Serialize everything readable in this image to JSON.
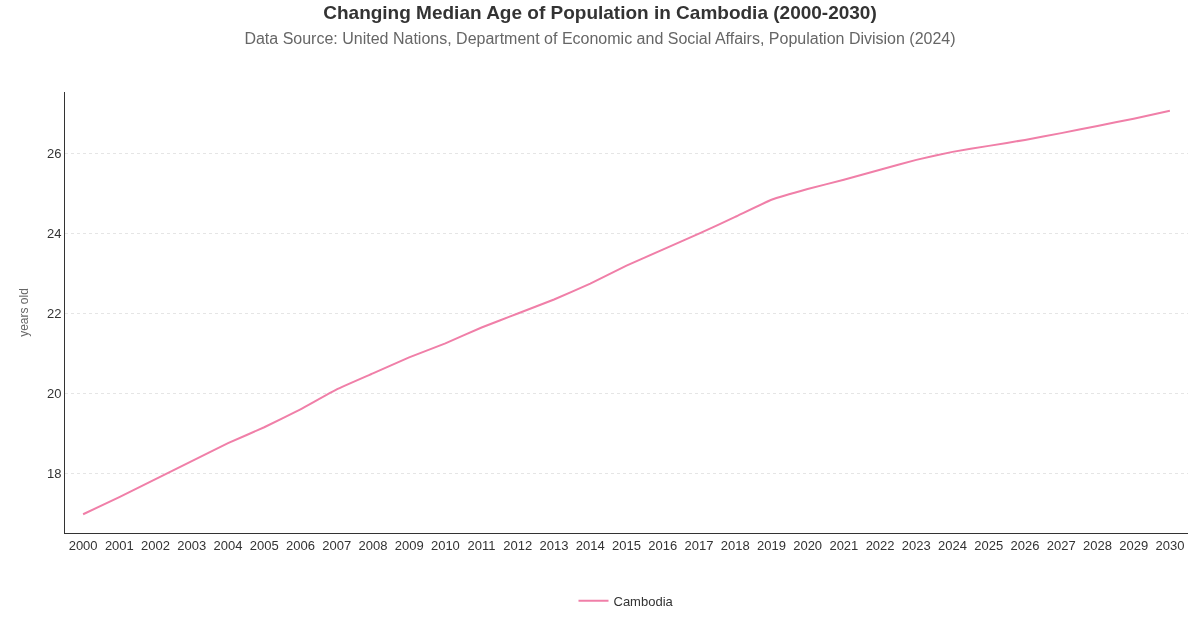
{
  "chart_data": {
    "type": "line",
    "title": "Changing Median Age of Population in Cambodia (2000-2030)",
    "subtitle": "Data Source: United Nations, Department of Economic and Social Affairs, Population Division (2024)",
    "ylabel": "years old",
    "categories": [
      "2000",
      "2001",
      "2002",
      "2003",
      "2004",
      "2005",
      "2006",
      "2007",
      "2008",
      "2009",
      "2010",
      "2011",
      "2012",
      "2013",
      "2014",
      "2015",
      "2016",
      "2017",
      "2018",
      "2019",
      "2020",
      "2021",
      "2022",
      "2023",
      "2024",
      "2025",
      "2026",
      "2027",
      "2028",
      "2029",
      "2030"
    ],
    "series": [
      {
        "name": "Cambodia",
        "color": "#f07fa8",
        "values": [
          16.97,
          17.4,
          17.85,
          18.3,
          18.75,
          19.15,
          19.6,
          20.1,
          20.5,
          20.9,
          21.25,
          21.65,
          22.0,
          22.35,
          22.75,
          23.2,
          23.6,
          24.0,
          24.42,
          24.85,
          25.12,
          25.35,
          25.6,
          25.85,
          26.05,
          26.2,
          26.35,
          26.52,
          26.7,
          26.88,
          27.08
        ]
      }
    ],
    "ylim": [
      16.5,
      27.55
    ],
    "yticks": [
      18,
      20,
      22,
      24,
      26
    ],
    "grid": "y",
    "legend": "bottom",
    "marker": "none",
    "line_style": "solid"
  }
}
